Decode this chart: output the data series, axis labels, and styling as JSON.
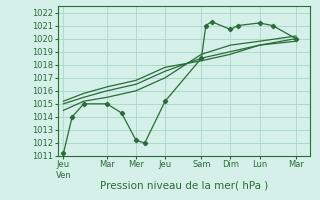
{
  "bg_color": "#d4f0e8",
  "grid_color": "#a8d8c8",
  "line_color": "#2a6b3a",
  "marker_color": "#2a6b3a",
  "xlabel": "Pression niveau de la mer( hPa )",
  "xlabel_fontsize": 7.5,
  "tick_fontsize": 6.0,
  "ylim": [
    1011,
    1022.5
  ],
  "yticks": [
    1011,
    1012,
    1013,
    1014,
    1015,
    1016,
    1017,
    1018,
    1019,
    1020,
    1021,
    1022
  ],
  "xtick_labels": [
    "Jeu\nVen",
    "Mar",
    "Mer",
    "Jeu",
    "Sam",
    "Dim",
    "Lun",
    "Mar"
  ],
  "xtick_positions": [
    0,
    1.5,
    2.5,
    3.5,
    4.75,
    5.75,
    6.75,
    8.0
  ],
  "xlim": [
    -0.2,
    8.5
  ],
  "series1_x": [
    0.0,
    0.3,
    0.7,
    1.5,
    2.0,
    2.5,
    2.8,
    3.5,
    4.75,
    4.9,
    5.1,
    5.75,
    6.0,
    6.75,
    7.2,
    8.0
  ],
  "series1_y": [
    1011.2,
    1014.0,
    1015.0,
    1015.0,
    1014.3,
    1012.2,
    1012.0,
    1015.2,
    1018.5,
    1021.0,
    1021.3,
    1020.7,
    1021.0,
    1021.2,
    1021.0,
    1020.0
  ],
  "series2_x": [
    0.0,
    0.7,
    1.5,
    2.5,
    3.5,
    4.75,
    5.75,
    6.75,
    8.0
  ],
  "series2_y": [
    1014.5,
    1015.2,
    1015.5,
    1016.0,
    1017.0,
    1018.8,
    1019.5,
    1019.8,
    1020.2
  ],
  "series3_x": [
    0.0,
    0.7,
    1.5,
    2.5,
    3.5,
    4.75,
    5.75,
    6.75,
    8.0
  ],
  "series3_y": [
    1015.0,
    1015.5,
    1016.0,
    1016.5,
    1017.5,
    1018.5,
    1019.0,
    1019.5,
    1020.0
  ],
  "series4_x": [
    0.0,
    0.7,
    1.5,
    2.5,
    3.5,
    4.75,
    5.75,
    6.75,
    8.0
  ],
  "series4_y": [
    1015.2,
    1015.8,
    1016.3,
    1016.8,
    1017.8,
    1018.3,
    1018.8,
    1019.5,
    1019.8
  ]
}
